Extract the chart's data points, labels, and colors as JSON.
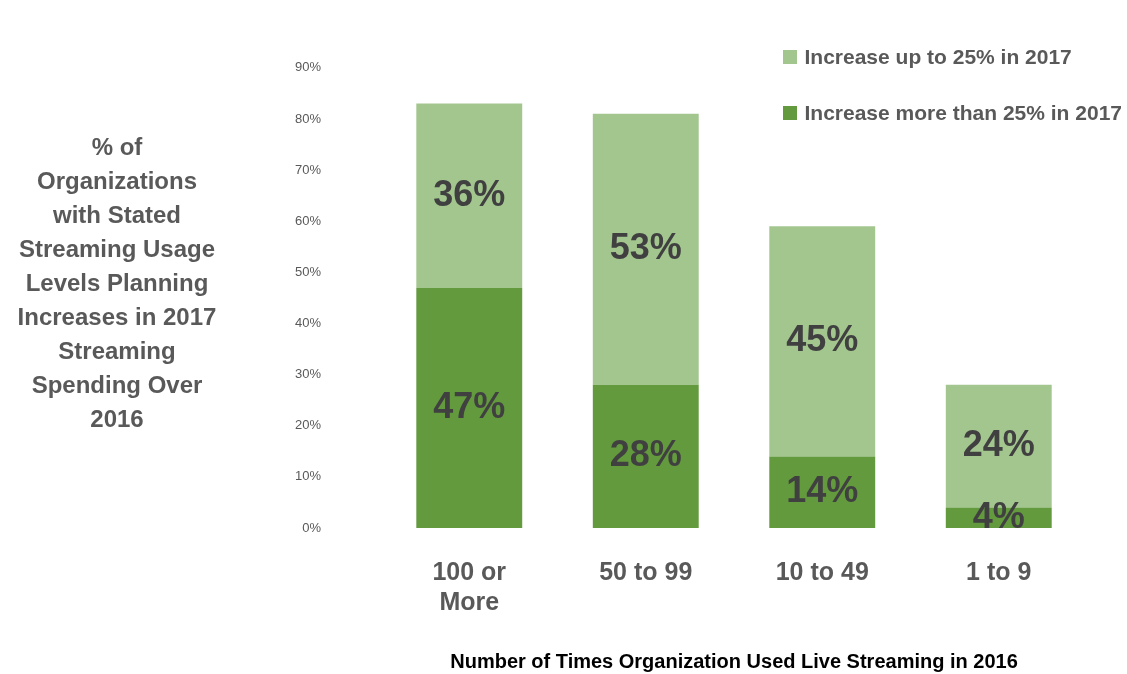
{
  "chart_data": {
    "type": "bar",
    "stacked": true,
    "ylabel": "% of Organizations with Stated Streaming Usage Levels Planning Increases in 2017 Streaming Spending Over 2016",
    "xlabel": "Number of Times Organization Used Live Streaming in 2016",
    "categories": [
      "100 or More",
      "50 to 99",
      "10 to 49",
      "1 to 9"
    ],
    "series": [
      {
        "name": "Increase more than 25% in 2017",
        "color": "#629a3d",
        "values": [
          47,
          28,
          14,
          4
        ],
        "value_labels": [
          "47%",
          "28%",
          "14%",
          "4%"
        ]
      },
      {
        "name": "Increase up to 25% in 2017",
        "color": "#a3c68f",
        "values": [
          36,
          53,
          45,
          24
        ],
        "value_labels": [
          "36%",
          "53%",
          "45%",
          "24%"
        ]
      }
    ],
    "ylim": [
      0,
      90
    ],
    "yticks": [
      {
        "value": 0,
        "label": "0%"
      },
      {
        "value": 10,
        "label": "10%"
      },
      {
        "value": 20,
        "label": "20%"
      },
      {
        "value": 30,
        "label": "30%"
      },
      {
        "value": 40,
        "label": "40%"
      },
      {
        "value": 50,
        "label": "50%"
      },
      {
        "value": 60,
        "label": "60%"
      },
      {
        "value": 70,
        "label": "70%"
      },
      {
        "value": 80,
        "label": "80%"
      },
      {
        "value": 90,
        "label": "90%"
      }
    ],
    "grid": false,
    "legend": "top right"
  }
}
